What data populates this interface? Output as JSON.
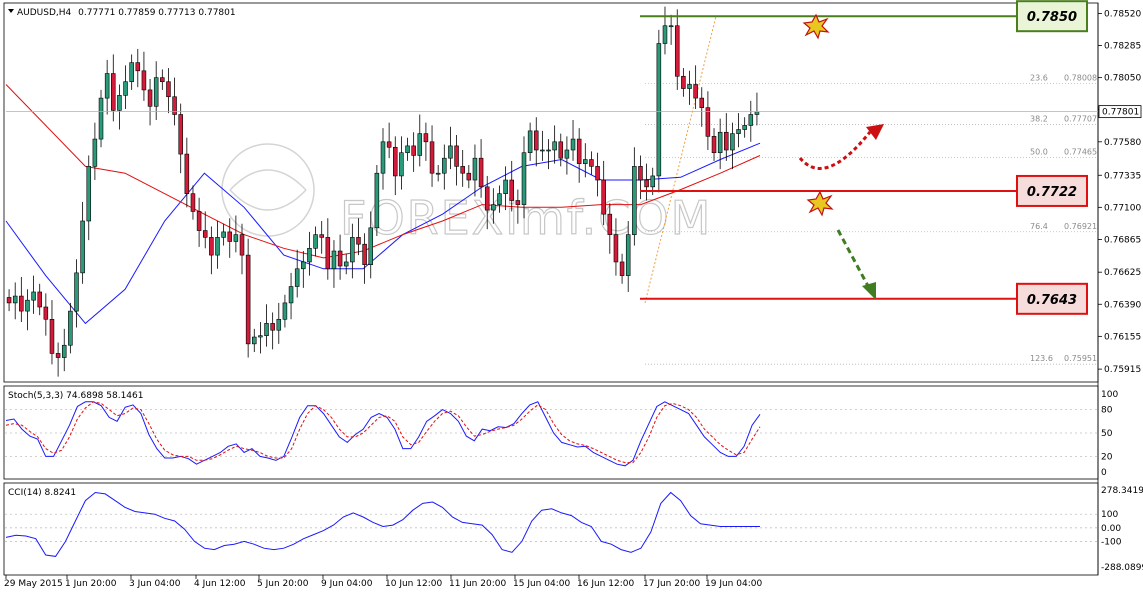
{
  "chart_data": {
    "type": "candlestick",
    "header": {
      "symbol": "AUDUSD,H4",
      "ohlc": "0.77771 0.77859 0.77713 0.77801"
    },
    "price_axis": {
      "min": 0.7585,
      "max": 0.7856,
      "ticks": [
        "0.78520",
        "0.78285",
        "0.78050",
        "0.77815",
        "0.77580",
        "0.77335",
        "0.77100",
        "0.76865",
        "0.76625",
        "0.76390",
        "0.76155",
        "0.75915"
      ]
    },
    "current_price": "0.77801",
    "time_labels": [
      "29 May 2015",
      "1 Jun 20:00",
      "3 Jun 04:00",
      "4 Jun 12:00",
      "5 Jun 20:00",
      "9 Jun 04:00",
      "10 Jun 12:00",
      "11 Jun 20:00",
      "15 Jun 04:00",
      "16 Jun 12:00",
      "17 Jun 20:00",
      "19 Jun 04:00"
    ],
    "candles_close": [
      0.764,
      0.7645,
      0.7634,
      0.7642,
      0.7648,
      0.7637,
      0.7628,
      0.7603,
      0.76,
      0.7609,
      0.7634,
      0.7662,
      0.77,
      0.774,
      0.776,
      0.779,
      0.7808,
      0.7781,
      0.7792,
      0.7802,
      0.7816,
      0.781,
      0.7796,
      0.7784,
      0.7805,
      0.7802,
      0.7791,
      0.7778,
      0.7749,
      0.772,
      0.7707,
      0.7693,
      0.7688,
      0.7675,
      0.7688,
      0.7692,
      0.7685,
      0.769,
      0.7675,
      0.761,
      0.7615,
      0.7616,
      0.7625,
      0.762,
      0.7628,
      0.764,
      0.7652,
      0.7665,
      0.767,
      0.768,
      0.769,
      0.7688,
      0.7665,
      0.7678,
      0.7667,
      0.767,
      0.7688,
      0.7683,
      0.7668,
      0.7695,
      0.7735,
      0.7758,
      0.7754,
      0.7733,
      0.775,
      0.7755,
      0.7748,
      0.7764,
      0.7758,
      0.7735,
      0.7735,
      0.7746,
      0.7755,
      0.774,
      0.7735,
      0.773,
      0.7746,
      0.7725,
      0.7708,
      0.7712,
      0.772,
      0.773,
      0.7715,
      0.7712,
      0.775,
      0.7766,
      0.7752,
      0.7752,
      0.7752,
      0.7758,
      0.7746,
      0.7752,
      0.776,
      0.7742,
      0.7745,
      0.774,
      0.773,
      0.7705,
      0.769,
      0.767,
      0.766,
      0.769,
      0.774,
      0.773,
      0.7725,
      0.7733,
      0.783,
      0.7843,
      0.7843,
      0.7806,
      0.7797,
      0.78,
      0.779,
      0.7783,
      0.7762,
      0.775,
      0.7765,
      0.7752,
      0.7764,
      0.7767,
      0.777,
      0.7778,
      0.778
    ],
    "moving_averages": [
      {
        "color": "#1a1aff",
        "values_close_sample": [
          0.77,
          0.766,
          0.7625,
          0.765,
          0.77,
          0.7735,
          0.771,
          0.7675,
          0.7665,
          0.7665,
          0.769,
          0.7705,
          0.7725,
          0.774,
          0.7745,
          0.773,
          0.773,
          0.7732,
          0.7745,
          0.7757
        ]
      },
      {
        "color": "#e01010",
        "values_close_sample": [
          0.78,
          0.777,
          0.774,
          0.7735,
          0.772,
          0.7705,
          0.769,
          0.768,
          0.7673,
          0.7678,
          0.769,
          0.77,
          0.7712,
          0.771,
          0.771,
          0.7712,
          0.7712,
          0.7723,
          0.7735,
          0.7748
        ]
      }
    ],
    "fibonacci": [
      {
        "label": "23.6",
        "price": "0.78008"
      },
      {
        "label": "38.2",
        "price": "0.77707"
      },
      {
        "label": "50.0",
        "price": "0.77465"
      },
      {
        "label": "76.4",
        "price": "0.76921"
      },
      {
        "label": "123.6",
        "price": "0.75951"
      }
    ],
    "levels": [
      {
        "label": "0.7850",
        "price": 0.785,
        "color": "#4a7f1c",
        "box_fill": "#e9f5d6"
      },
      {
        "label": "0.7722",
        "price": 0.7722,
        "color": "#e01010",
        "box_fill": "#f7dcdc"
      },
      {
        "label": "0.7643",
        "price": 0.7643,
        "color": "#e01010",
        "box_fill": "#f7dcdc"
      }
    ],
    "watermark": "FOREXimf.COM",
    "stochastic": {
      "label": "Stoch(5,3,3) 74.6898 58.1461",
      "axis_ticks": [
        "100",
        "80",
        "50",
        "20",
        "0"
      ],
      "range": [
        0,
        100
      ],
      "k": [
        66,
        68,
        55,
        46,
        42,
        20,
        20,
        40,
        60,
        84,
        90,
        90,
        85,
        70,
        65,
        83,
        86,
        75,
        48,
        30,
        18,
        18,
        20,
        17,
        10,
        15,
        20,
        25,
        33,
        36,
        25,
        30,
        20,
        18,
        15,
        20,
        44,
        70,
        85,
        85,
        75,
        60,
        45,
        38,
        48,
        55,
        70,
        75,
        70,
        55,
        30,
        30,
        45,
        65,
        72,
        80,
        75,
        65,
        46,
        40,
        55,
        53,
        58,
        57,
        62,
        75,
        86,
        90,
        70,
        50,
        38,
        35,
        32,
        33,
        25,
        20,
        15,
        10,
        8,
        15,
        40,
        62,
        84,
        90,
        85,
        80,
        75,
        60,
        45,
        35,
        25,
        20,
        20,
        33,
        60,
        74
      ],
      "d": [
        60,
        62,
        60,
        52,
        45,
        30,
        24,
        28,
        45,
        68,
        82,
        90,
        88,
        80,
        72,
        75,
        82,
        80,
        62,
        42,
        28,
        22,
        20,
        20,
        15,
        15,
        17,
        22,
        28,
        33,
        30,
        28,
        25,
        20,
        18,
        18,
        30,
        55,
        75,
        85,
        80,
        70,
        55,
        45,
        45,
        50,
        60,
        70,
        72,
        65,
        45,
        35,
        38,
        52,
        65,
        75,
        78,
        72,
        58,
        46,
        48,
        52,
        55,
        57,
        60,
        68,
        78,
        86,
        80,
        62,
        48,
        40,
        36,
        34,
        30,
        25,
        20,
        15,
        12,
        12,
        25,
        45,
        70,
        85,
        88,
        85,
        80,
        70,
        55,
        45,
        35,
        28,
        22,
        25,
        42,
        58
      ]
    },
    "cci": {
      "label": "CCI(14) 8.8241",
      "axis_ticks": [
        "278.3419",
        "100",
        "0.00",
        "-100",
        "-288.0899"
      ],
      "range": [
        -288.0899,
        278.3419
      ],
      "values": [
        -70,
        -55,
        -60,
        -80,
        -200,
        -210,
        -100,
        50,
        200,
        260,
        250,
        200,
        150,
        120,
        110,
        100,
        70,
        50,
        -10,
        -100,
        -150,
        -160,
        -130,
        -120,
        -100,
        -120,
        -150,
        -160,
        -150,
        -120,
        -80,
        -50,
        -20,
        20,
        80,
        110,
        80,
        40,
        10,
        20,
        60,
        130,
        180,
        190,
        150,
        80,
        40,
        30,
        20,
        -50,
        -160,
        -180,
        -100,
        50,
        130,
        140,
        110,
        90,
        40,
        10,
        -100,
        -120,
        -160,
        -180,
        -150,
        -30,
        180,
        260,
        200,
        90,
        30,
        20,
        10,
        10,
        10,
        10,
        10
      ]
    }
  }
}
